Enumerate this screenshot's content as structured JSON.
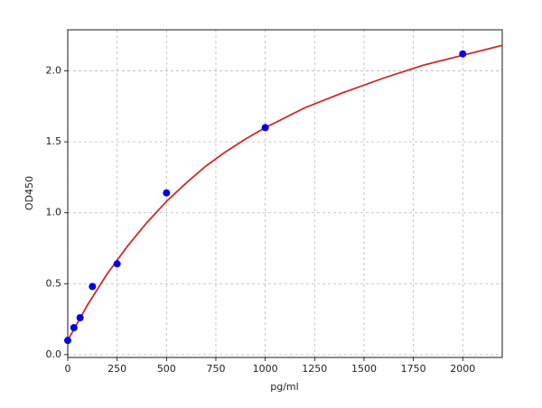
{
  "chart_data": {
    "type": "scatter",
    "xlabel": "pg/ml",
    "ylabel": "OD450",
    "xlim": [
      0,
      2200
    ],
    "ylim": [
      -0.02,
      2.29
    ],
    "xticks": [
      0,
      250,
      500,
      750,
      1000,
      1250,
      1500,
      1750,
      2000
    ],
    "yticks": [
      {
        "value": 0,
        "label": "0.0"
      },
      {
        "value": 0.5,
        "label": "0.5"
      },
      {
        "value": 1,
        "label": "1.0"
      },
      {
        "value": 1.5,
        "label": "1.5"
      },
      {
        "value": 2,
        "label": "2.0"
      }
    ],
    "grid": true,
    "series": [
      {
        "type": "line",
        "color": "#d62728",
        "x": [
          0,
          100,
          200,
          300,
          400,
          500,
          600,
          700,
          800,
          900,
          1000,
          1200,
          1400,
          1600,
          1800,
          2000,
          2200
        ],
        "values": [
          0.1,
          0.35,
          0.57,
          0.76,
          0.93,
          1.08,
          1.21,
          1.33,
          1.43,
          1.52,
          1.6,
          1.74,
          1.85,
          1.95,
          2.04,
          2.11,
          2.18
        ]
      },
      {
        "type": "scatter",
        "color": "#0000ee",
        "x": [
          0,
          31.25,
          62.5,
          125,
          250,
          500,
          1000,
          2000
        ],
        "values": [
          0.1,
          0.19,
          0.26,
          0.48,
          0.64,
          1.14,
          1.6,
          2.12
        ]
      }
    ]
  }
}
